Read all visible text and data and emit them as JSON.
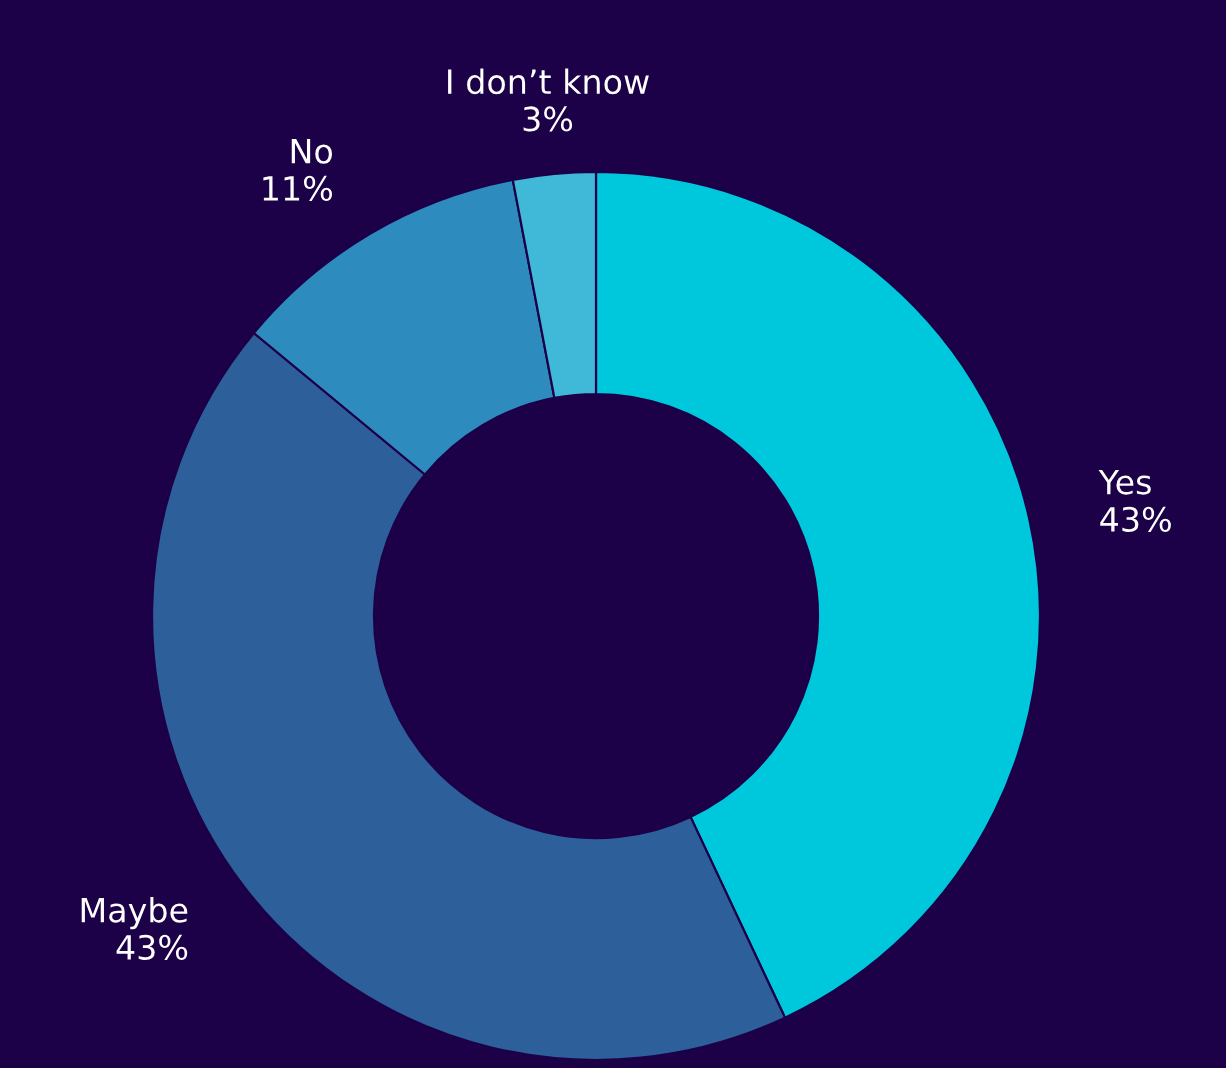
{
  "chart_data": {
    "type": "donut",
    "categories": [
      "Yes",
      "Maybe",
      "No",
      "I don’t know"
    ],
    "values": [
      43,
      43,
      11,
      3
    ],
    "value_labels": [
      "43%",
      "43%",
      "11%",
      "3%"
    ],
    "colors": [
      "#00c8dc",
      "#2d5f9a",
      "#2e8bbd",
      "#40b8d8"
    ]
  }
}
